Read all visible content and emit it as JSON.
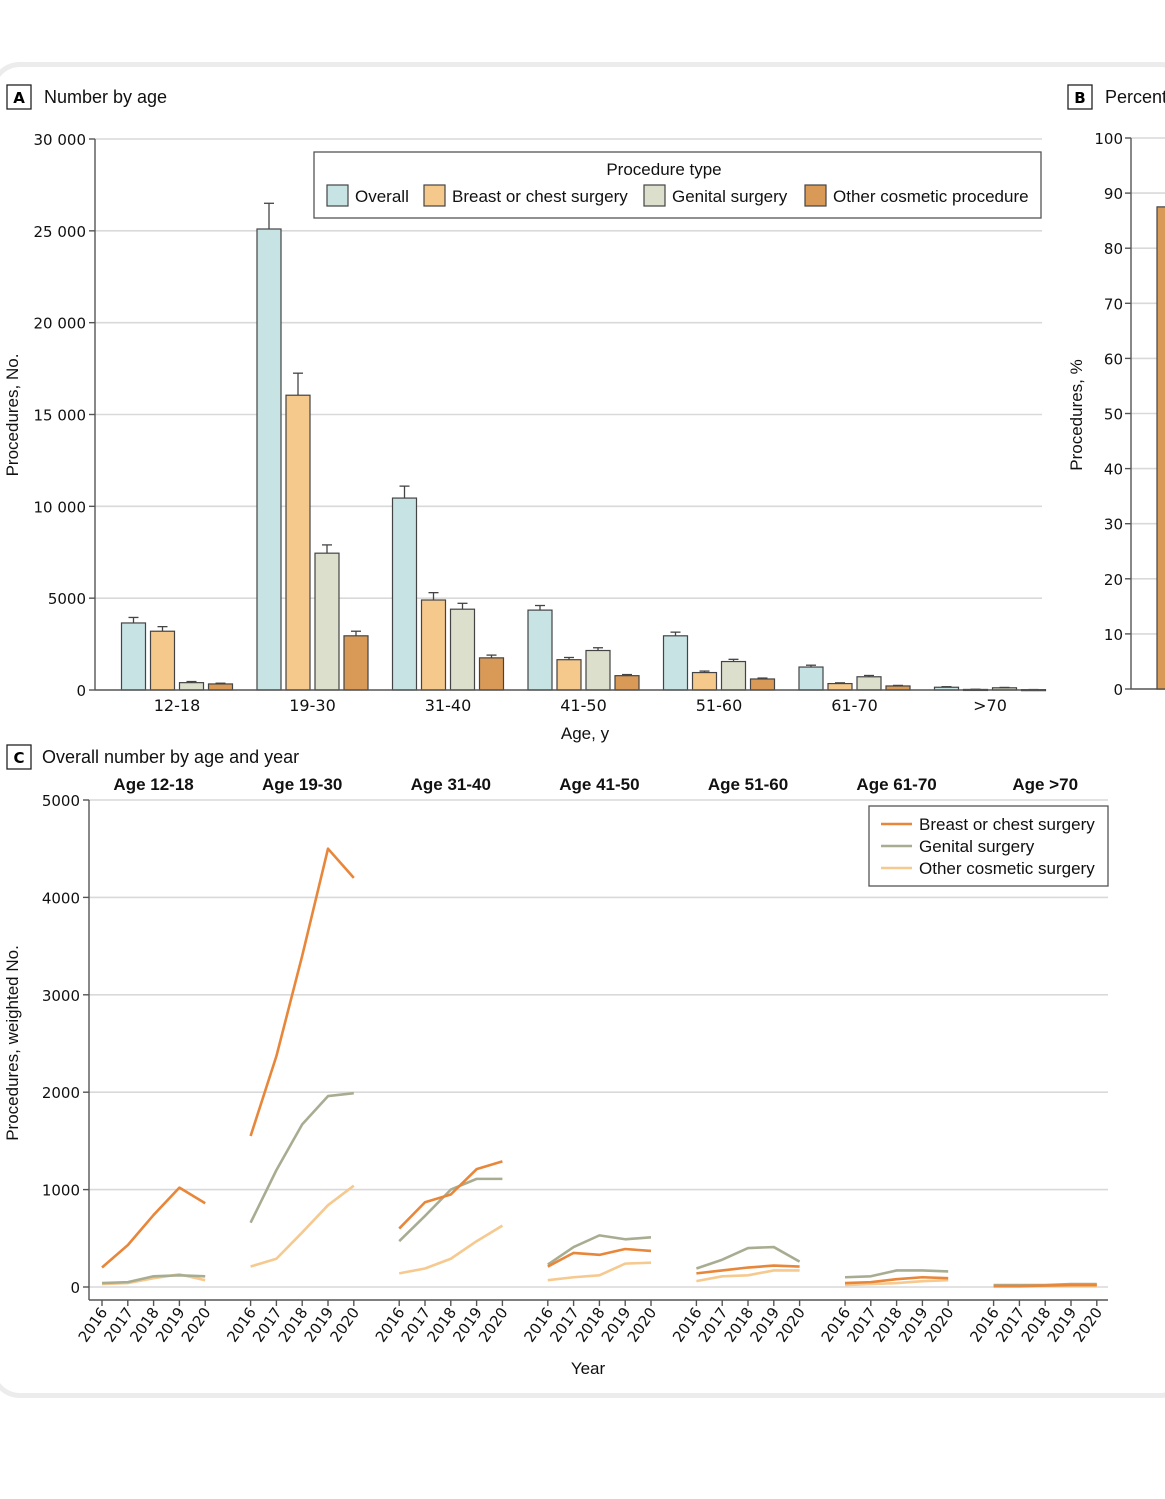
{
  "panelA": {
    "letter": "A",
    "title": "Number by age",
    "legend_title": "Procedure type",
    "chart_data": {
      "type": "bar",
      "title": "Number by age",
      "xlabel": "Age, y",
      "ylabel": "Procedures, No.",
      "ylim": [
        0,
        30000
      ],
      "yticks": [
        "0",
        "5000",
        "10 000",
        "15 000",
        "20 000",
        "25 000",
        "30 000"
      ],
      "ytick_values": [
        0,
        5000,
        10000,
        15000,
        20000,
        25000,
        30000
      ],
      "grid": true,
      "legend_position": "top-right",
      "categories": [
        "12-18",
        "19-30",
        "31-40",
        "41-50",
        "51-60",
        "61-70",
        ">70"
      ],
      "series": [
        {
          "name": "Overall",
          "color": "#c8e3e4",
          "values": [
            3650,
            25100,
            10450,
            4350,
            2950,
            1250,
            150
          ],
          "errors": [
            300,
            1400,
            650,
            250,
            200,
            100,
            30
          ]
        },
        {
          "name": "Breast or chest surgery",
          "color": "#f5c88c",
          "values": [
            3200,
            16050,
            4900,
            1650,
            950,
            350,
            30
          ],
          "errors": [
            250,
            1200,
            400,
            120,
            80,
            40,
            10
          ]
        },
        {
          "name": "Genital surgery",
          "color": "#dcdfcb",
          "values": [
            400,
            7450,
            4400,
            2150,
            1550,
            720,
            120
          ],
          "errors": [
            60,
            450,
            320,
            150,
            120,
            70,
            20
          ]
        },
        {
          "name": "Other cosmetic procedure",
          "color": "#d99a57",
          "values": [
            330,
            2950,
            1750,
            780,
            600,
            220,
            20
          ],
          "errors": [
            40,
            250,
            150,
            60,
            50,
            30,
            5
          ]
        }
      ]
    }
  },
  "panelB": {
    "letter": "B",
    "title": "Percent",
    "chart_data": {
      "type": "bar",
      "title": "Percent",
      "ylabel": "Procedures, %",
      "ylim": [
        0,
        100
      ],
      "yticks": [
        "0",
        "10",
        "20",
        "30",
        "40",
        "50",
        "60",
        "70",
        "80",
        "90",
        "100"
      ],
      "ytick_values": [
        0,
        10,
        20,
        30,
        40,
        50,
        60,
        70,
        80,
        90,
        100
      ],
      "grid": true,
      "series": [
        {
          "name": "Other cosmetic procedure",
          "color": "#d99a57",
          "values": [
            87.5
          ]
        }
      ]
    }
  },
  "panelC": {
    "letter": "C",
    "title": "Overall number by age and year",
    "chart_data": {
      "type": "line",
      "title": "Overall number by age and year",
      "xlabel": "Year",
      "ylabel": "Procedures, weighted No.",
      "ylim": [
        0,
        5000
      ],
      "yticks": [
        "0",
        "1000",
        "2000",
        "3000",
        "4000",
        "5000"
      ],
      "ytick_values": [
        0,
        1000,
        2000,
        3000,
        4000,
        5000
      ],
      "grid": true,
      "legend_position": "top-right",
      "groups": [
        "Age 12-18",
        "Age 19-30",
        "Age 31-40",
        "Age 41-50",
        "Age 51-60",
        "Age 61-70",
        "Age >70"
      ],
      "x": [
        "2016",
        "2017",
        "2018",
        "2019",
        "2020"
      ],
      "series": [
        {
          "name": "Breast or chest surgery",
          "color": "#e8863a",
          "values": [
            [
              200,
              430,
              740,
              1020,
              860
            ],
            [
              1550,
              2370,
              3400,
              4500,
              4200
            ],
            [
              600,
              870,
              950,
              1210,
              1290
            ],
            [
              210,
              350,
              330,
              390,
              370
            ],
            [
              140,
              170,
              200,
              220,
              210
            ],
            [
              40,
              50,
              80,
              100,
              90
            ],
            [
              10,
              10,
              15,
              20,
              20
            ]
          ]
        },
        {
          "name": "Genital surgery",
          "color": "#a8ad92",
          "values": [
            [
              40,
              50,
              110,
              120,
              110
            ],
            [
              660,
              1200,
              1670,
              1960,
              1990
            ],
            [
              470,
              730,
              1000,
              1110,
              1110
            ],
            [
              230,
              410,
              530,
              490,
              510
            ],
            [
              190,
              280,
              400,
              410,
              260
            ],
            [
              100,
              110,
              170,
              170,
              160
            ],
            [
              20,
              20,
              20,
              30,
              30
            ]
          ]
        },
        {
          "name": "Other cosmetic surgery",
          "color": "#f6c98f",
          "values": [
            [
              30,
              40,
              90,
              130,
              70
            ],
            [
              210,
              290,
              560,
              840,
              1040
            ],
            [
              140,
              190,
              290,
              470,
              630
            ],
            [
              70,
              100,
              120,
              240,
              250
            ],
            [
              60,
              110,
              120,
              170,
              170
            ],
            [
              20,
              30,
              40,
              60,
              70
            ],
            [
              5,
              5,
              10,
              10,
              10
            ]
          ]
        }
      ]
    }
  }
}
